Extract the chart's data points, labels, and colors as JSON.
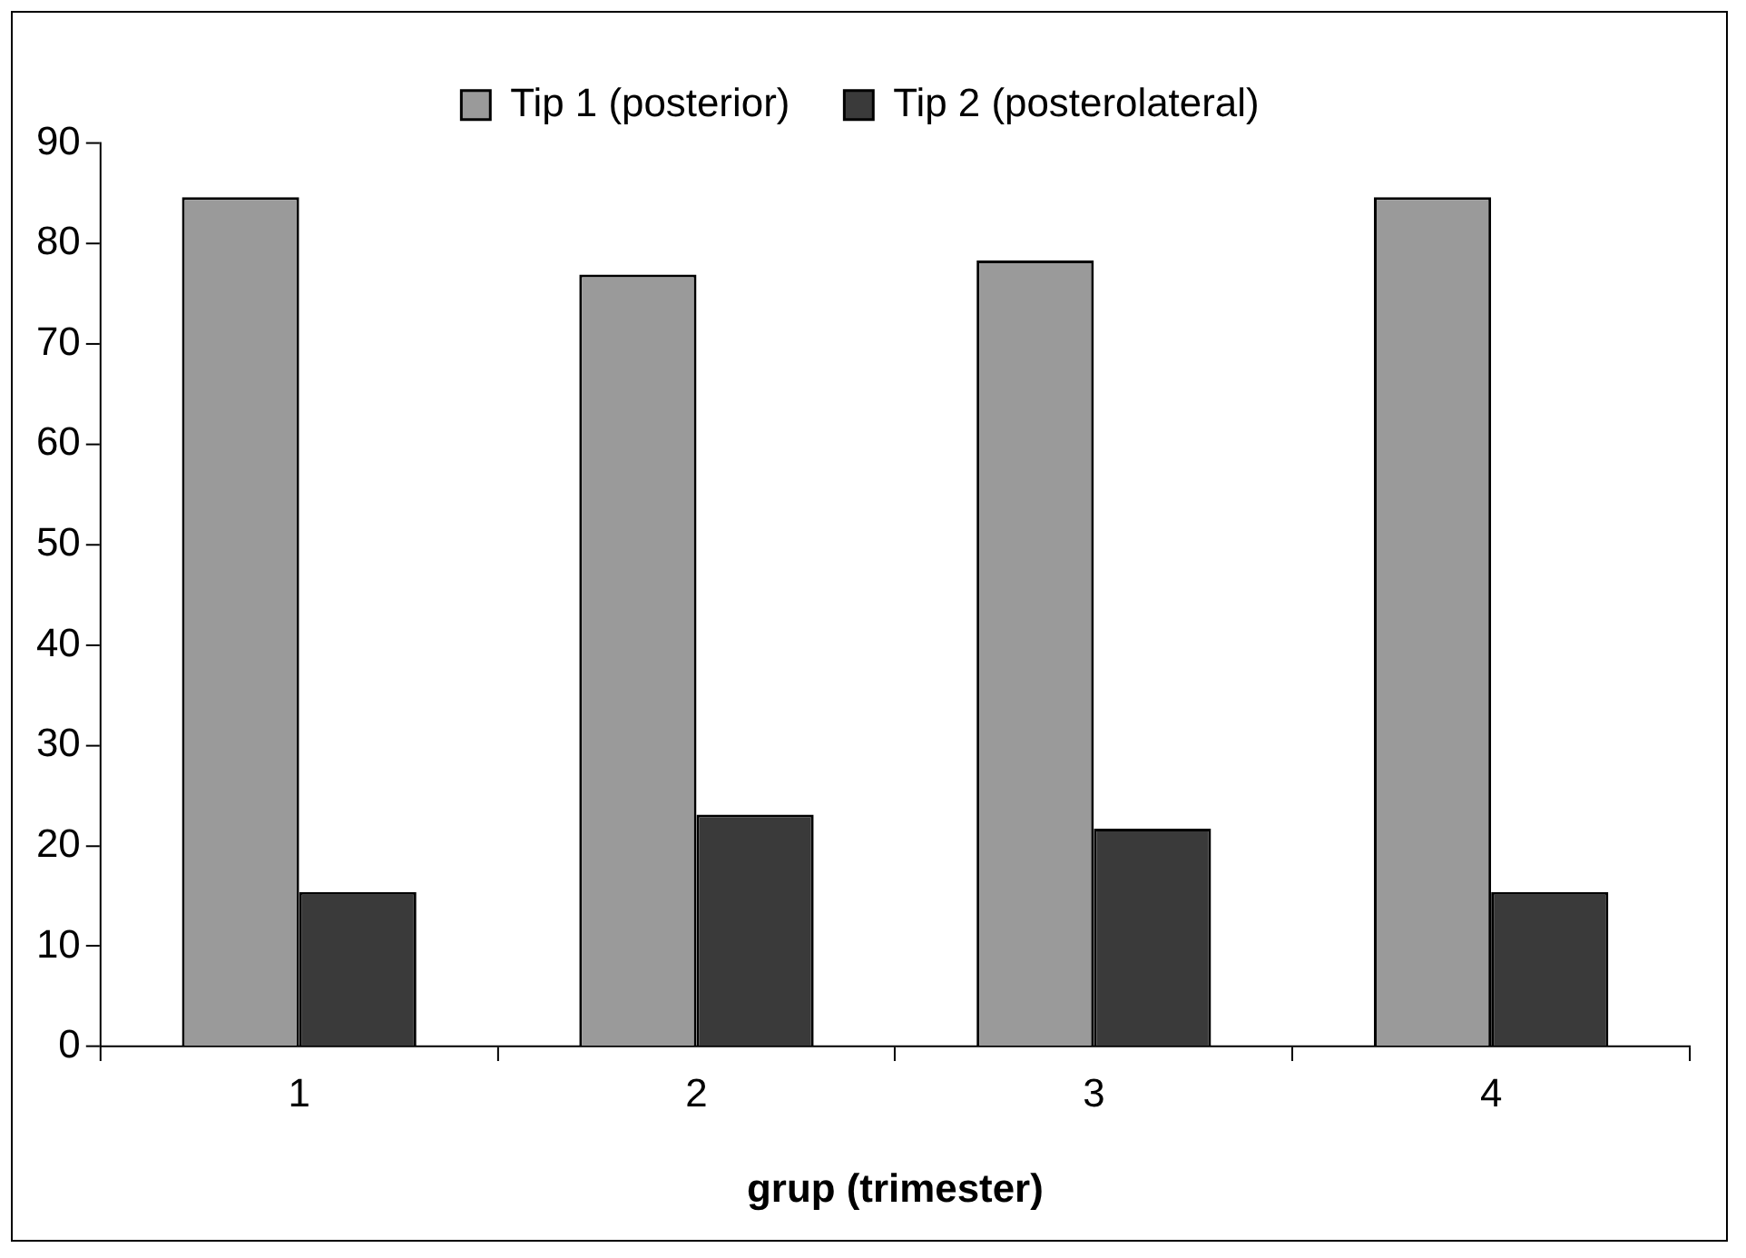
{
  "chart_data": {
    "type": "bar",
    "xlabel": "grup (trimester)",
    "categories": [
      "1",
      "2",
      "3",
      "4"
    ],
    "series": [
      {
        "name": "Tip 1 (posterior)",
        "color": "#9a9a9a",
        "values": [
          84.6,
          76.9,
          78.3,
          84.6
        ]
      },
      {
        "name": "Tip 2 (posterolateral)",
        "color": "#3a3a3a",
        "values": [
          15.4,
          23.1,
          21.7,
          15.4
        ]
      }
    ],
    "ylim": [
      0,
      90
    ],
    "yticks": [
      0,
      10,
      20,
      30,
      40,
      50,
      60,
      70,
      80,
      90
    ],
    "grid": false,
    "legend": "top"
  }
}
